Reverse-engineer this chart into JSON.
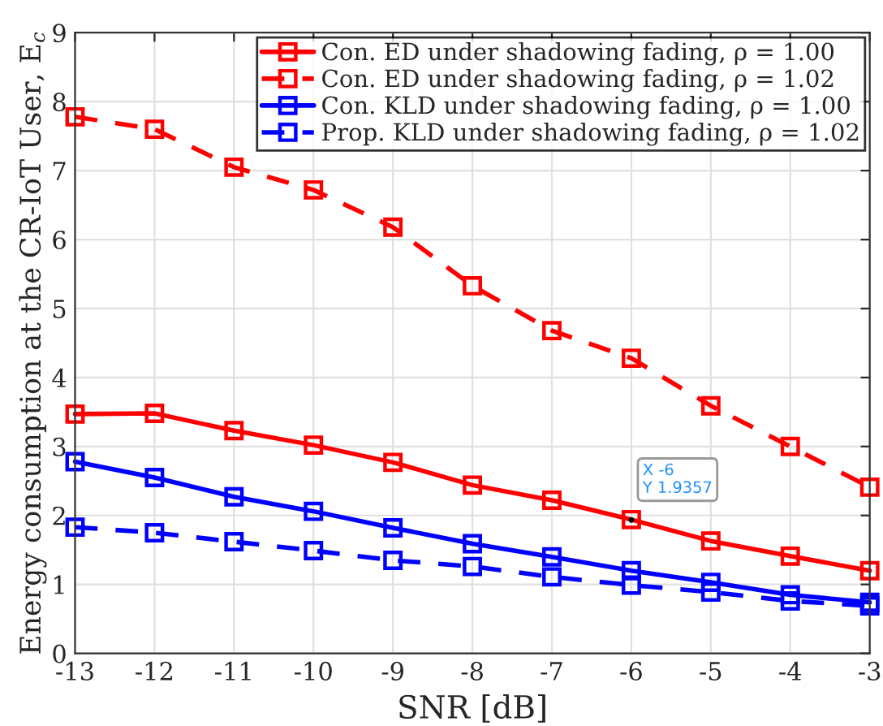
{
  "chart_data": {
    "type": "line",
    "xlabel": "SNR [dB]",
    "ylabel": "Energy consumption at the CR-IoT User, E$_{c}$",
    "x": [
      -13,
      -12,
      -11,
      -10,
      -9,
      -8,
      -7,
      -6,
      -5,
      -4,
      -3
    ],
    "series": [
      {
        "name": "Con. ED under shadowing fading, ρ = 1.00",
        "color": "#ff0000",
        "line_style": "solid",
        "values": [
          3.47,
          3.48,
          3.23,
          3.02,
          2.77,
          2.44,
          2.22,
          1.94,
          1.63,
          1.41,
          1.2
        ]
      },
      {
        "name": "Con. ED under shadowing fading, ρ = 1.02",
        "color": "#ff0000",
        "line_style": "dashed",
        "values": [
          7.78,
          7.6,
          7.05,
          6.72,
          6.18,
          5.33,
          4.68,
          4.28,
          3.59,
          3.0,
          2.41
        ]
      },
      {
        "name": "Con. KLD under shadowing fading, ρ = 1.00",
        "color": "#0000ff",
        "line_style": "solid",
        "values": [
          2.78,
          2.55,
          2.27,
          2.06,
          1.82,
          1.59,
          1.4,
          1.2,
          1.03,
          0.85,
          0.74
        ]
      },
      {
        "name": "Prop. KLD under shadowing fading, ρ = 1.02",
        "color": "#0000ff",
        "line_style": "dashed",
        "values": [
          1.83,
          1.75,
          1.62,
          1.49,
          1.35,
          1.26,
          1.11,
          0.99,
          0.89,
          0.76,
          0.69
        ]
      }
    ],
    "annotations": [
      {
        "text": "X -6\nY 1.9357",
        "x": -6,
        "y": 1.9357
      }
    ],
    "xlim": [
      -13,
      -3
    ],
    "ylim": [
      0,
      9
    ],
    "xticks": [
      -13,
      -12,
      -11,
      -10,
      -9,
      -8,
      -7,
      -6,
      -5,
      -4,
      -3
    ],
    "yticks": [
      0,
      1,
      2,
      3,
      4,
      5,
      6,
      7,
      8,
      9
    ],
    "grid": true,
    "legend": "top right",
    "marker": "square"
  }
}
